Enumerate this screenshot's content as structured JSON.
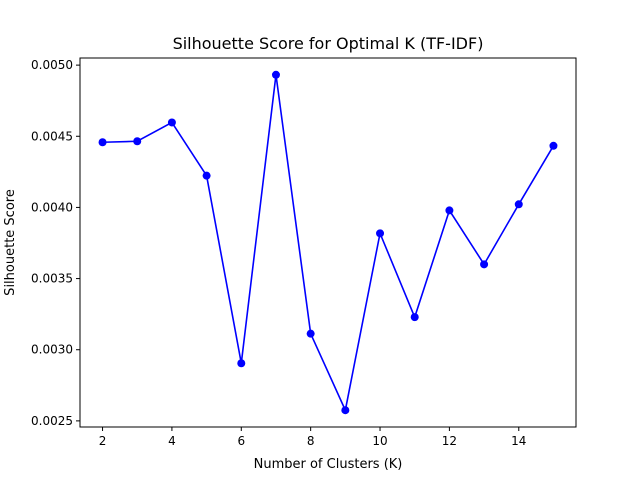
{
  "chart_data": {
    "type": "line",
    "title": "Silhouette Score for Optimal K (TF-IDF)",
    "xlabel": "Number of Clusters (K)",
    "ylabel": "Silhouette Score",
    "x": [
      2,
      3,
      4,
      5,
      6,
      7,
      8,
      9,
      10,
      11,
      12,
      13,
      14,
      15
    ],
    "series": [
      {
        "values": [
          0.004458,
          0.004465,
          0.004597,
          0.004223,
          0.002905,
          0.004932,
          0.003113,
          0.002575,
          0.003818,
          0.003229,
          0.003979,
          0.0036,
          0.004022,
          0.004433
        ],
        "color": "#0000ff",
        "marker": "circle"
      }
    ],
    "xlim": [
      1.35,
      15.65
    ],
    "ylim": [
      0.002457,
      0.00505
    ],
    "xticks": [
      2,
      4,
      6,
      8,
      10,
      12,
      14
    ],
    "xtick_labels": [
      "2",
      "4",
      "6",
      "8",
      "10",
      "12",
      "14"
    ],
    "yticks": [
      0.0025,
      0.003,
      0.0035,
      0.004,
      0.0045,
      0.005
    ],
    "ytick_labels": [
      "0.0025",
      "0.0030",
      "0.0035",
      "0.0040",
      "0.0045",
      "0.0050"
    ],
    "grid": false,
    "legend": "none"
  }
}
